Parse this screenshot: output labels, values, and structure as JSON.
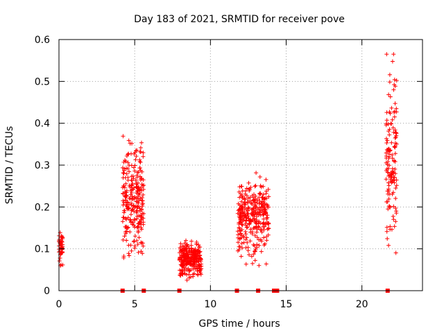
{
  "chart_data": {
    "type": "scatter",
    "title": "Day 183 of 2021, SRMTID for receiver pove",
    "xlabel": "GPS time / hours",
    "ylabel": "SRMTID / TECUs",
    "xlim": [
      0,
      24
    ],
    "ylim": [
      0,
      0.6
    ],
    "xticks": [
      0,
      5,
      10,
      15,
      20
    ],
    "yticks": [
      0,
      0.1,
      0.2,
      0.3,
      0.4,
      0.5,
      0.6
    ],
    "xtick_labels": [
      "0",
      "5",
      "10",
      "15",
      "20"
    ],
    "ytick_labels": [
      "0",
      "0.1",
      "0.2",
      "0.3",
      "0.4",
      "0.5",
      "0.6"
    ],
    "grid": true,
    "marker": "+",
    "color": "#ff0000",
    "clusters": [
      {
        "x_range": [
          0.0,
          0.25
        ],
        "y_range": [
          0.05,
          0.155
        ],
        "count": 45
      },
      {
        "x_range": [
          4.2,
          5.6
        ],
        "y_range": [
          0.055,
          0.385
        ],
        "count": 260
      },
      {
        "x_range": [
          7.95,
          9.4
        ],
        "y_range": [
          0.025,
          0.125
        ],
        "count": 260
      },
      {
        "x_range": [
          11.8,
          13.85
        ],
        "y_range": [
          0.06,
          0.29
        ],
        "count": 320
      },
      {
        "x_range": [
          21.6,
          22.3
        ],
        "y_range": [
          0.085,
          0.565
        ],
        "count": 140
      }
    ],
    "zero_markers_x": [
      4.2,
      5.6,
      7.95,
      11.75,
      13.15,
      14.2,
      14.4,
      21.7
    ]
  }
}
